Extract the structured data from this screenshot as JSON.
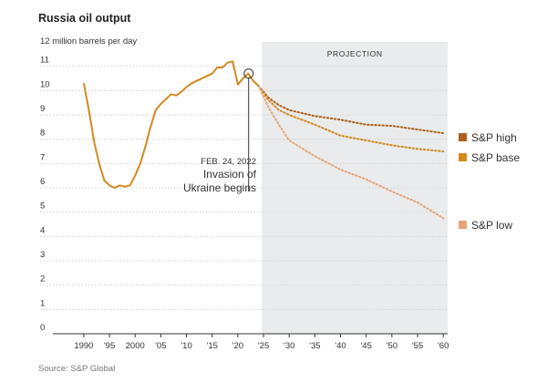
{
  "chart_data": {
    "type": "line",
    "title": "Russia oil output",
    "ylabel": "12 million barrels per day",
    "ylim": [
      0,
      12
    ],
    "xlim": [
      1987,
      2060.5
    ],
    "y_ticks": [
      0,
      1,
      2,
      3,
      4,
      5,
      6,
      7,
      8,
      9,
      10,
      11
    ],
    "x_ticks": [
      {
        "value": 1990,
        "label": "1990"
      },
      {
        "value": 1995,
        "label": "'95"
      },
      {
        "value": 2000,
        "label": "2000"
      },
      {
        "value": 2005,
        "label": "'05"
      },
      {
        "value": 2010,
        "label": "'10"
      },
      {
        "value": 2015,
        "label": "'15"
      },
      {
        "value": 2020,
        "label": "'20"
      },
      {
        "value": 2025,
        "label": "'25"
      },
      {
        "value": 2030,
        "label": "'30"
      },
      {
        "value": 2035,
        "label": "'35"
      },
      {
        "value": 2040,
        "label": "'40"
      },
      {
        "value": 2045,
        "label": "'45"
      },
      {
        "value": 2050,
        "label": "'50"
      },
      {
        "value": 2055,
        "label": "'55"
      },
      {
        "value": 2060,
        "label": "'60"
      }
    ],
    "projection": {
      "label": "PROJECTION",
      "start": 2024.7,
      "end": 2060.5
    },
    "annotation": {
      "x": 2022.1,
      "y": 10.7,
      "date": "FEB. 24, 2022",
      "lines": [
        "Invasion of",
        "Ukraine begins"
      ]
    },
    "historical": {
      "color": "#d4891f",
      "x": [
        1990,
        1991,
        1992,
        1993,
        1994,
        1995,
        1996,
        1997,
        1998,
        1999,
        2000,
        2001,
        2002,
        2003,
        2004,
        2005,
        2006,
        2007,
        2008,
        2009,
        2010,
        2011,
        2012,
        2013,
        2014,
        2015,
        2016,
        2017,
        2018,
        2019,
        2020,
        2021,
        2022,
        2023,
        2024
      ],
      "y": [
        10.3,
        9.2,
        7.9,
        7.0,
        6.3,
        6.1,
        6.0,
        6.1,
        6.05,
        6.1,
        6.5,
        7.0,
        7.7,
        8.5,
        9.2,
        9.45,
        9.65,
        9.85,
        9.8,
        9.95,
        10.15,
        10.3,
        10.4,
        10.5,
        10.6,
        10.7,
        10.95,
        10.95,
        11.15,
        11.2,
        10.25,
        10.5,
        10.7,
        10.4,
        10.2
      ]
    },
    "series": [
      {
        "name": "S&P high",
        "color": "#b0601a",
        "x": [
          2024,
          2026,
          2028,
          2030,
          2032,
          2035,
          2040,
          2045,
          2050,
          2055,
          2060
        ],
        "y": [
          10.2,
          9.7,
          9.4,
          9.2,
          9.1,
          8.95,
          8.8,
          8.6,
          8.55,
          8.4,
          8.25
        ]
      },
      {
        "name": "S&P base",
        "color": "#d4891f",
        "x": [
          2024,
          2026,
          2028,
          2030,
          2035,
          2040,
          2045,
          2050,
          2055,
          2060
        ],
        "y": [
          10.2,
          9.6,
          9.2,
          9.0,
          8.6,
          8.15,
          7.95,
          7.75,
          7.6,
          7.5
        ]
      },
      {
        "name": "S&P low",
        "color": "#e6a579",
        "x": [
          2024,
          2026,
          2028,
          2030,
          2035,
          2040,
          2045,
          2050,
          2055,
          2060
        ],
        "y": [
          10.2,
          9.3,
          8.6,
          7.95,
          7.3,
          6.75,
          6.35,
          5.85,
          5.4,
          4.75
        ]
      }
    ],
    "source": "Source: S&P Global"
  }
}
